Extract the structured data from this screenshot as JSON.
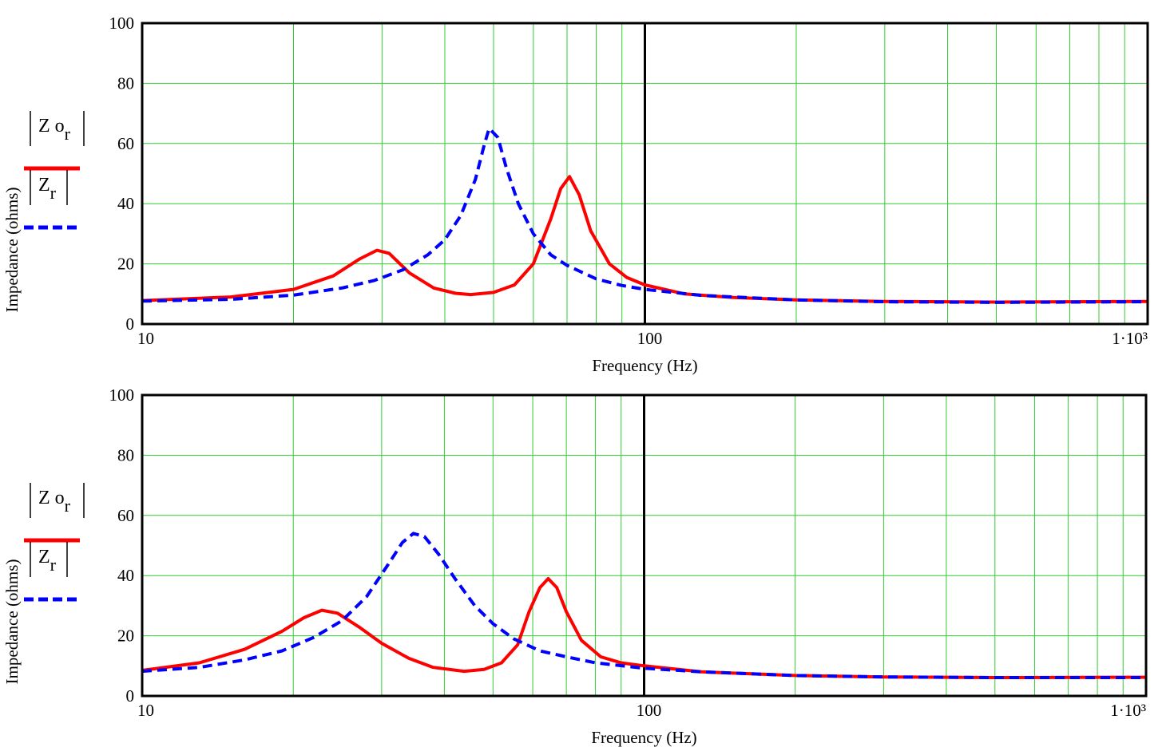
{
  "chart_data": [
    {
      "type": "line",
      "xscale": "log",
      "xlim": [
        10,
        1000
      ],
      "ylim": [
        0,
        100
      ],
      "xlabel": "Frequency (Hz)",
      "ylabel": "Impedance (ohms)",
      "xticks": [
        "10",
        "100",
        "1·10³"
      ],
      "yticks": [
        "0",
        "20",
        "40",
        "60",
        "80",
        "100"
      ],
      "grid": true,
      "legend_position": "left",
      "series": [
        {
          "name": "|Z o_r|",
          "legend_main": "Z o",
          "legend_sub": "r",
          "color": "#ff0000",
          "style": "solid",
          "x": [
            10,
            15,
            20,
            24,
            27,
            29.3,
            31,
            34,
            38,
            42,
            45,
            50,
            55,
            60,
            65,
            68,
            70.8,
            74,
            78,
            85,
            92,
            100,
            120,
            150,
            200,
            300,
            500,
            1000
          ],
          "y": [
            7.8,
            9,
            11.5,
            16,
            21.5,
            24.5,
            23.5,
            17,
            12,
            10.2,
            9.8,
            10.5,
            13,
            20,
            35,
            45,
            49,
            43,
            31,
            20,
            15.5,
            13,
            10,
            8.8,
            8,
            7.5,
            7.3,
            7.5
          ]
        },
        {
          "name": "|Z_r|",
          "legend_main": "Z",
          "legend_sub": "r",
          "color": "#0000ff",
          "style": "dashed",
          "x": [
            10,
            15,
            20,
            25,
            29,
            33,
            37,
            40,
            43,
            46,
            48,
            49,
            51,
            53,
            56,
            60,
            65,
            70,
            80,
            90,
            100,
            130,
            200,
            300,
            500,
            1000
          ],
          "y": [
            7.6,
            8.2,
            9.6,
            12,
            14.5,
            18,
            23,
            28,
            36,
            48,
            60,
            65,
            62,
            52,
            40,
            30,
            23,
            19.5,
            15,
            12.8,
            11.5,
            9.5,
            8,
            7.4,
            7.2,
            7.4
          ]
        }
      ]
    },
    {
      "type": "line",
      "xscale": "log",
      "xlim": [
        10,
        1000
      ],
      "ylim": [
        0,
        100
      ],
      "xlabel": "Frequency (Hz)",
      "ylabel": "Impedance (ohms)",
      "xticks": [
        "10",
        "100",
        "1·10³"
      ],
      "yticks": [
        "0",
        "20",
        "40",
        "60",
        "80",
        "100"
      ],
      "grid": true,
      "legend_position": "left",
      "series": [
        {
          "name": "|Z o_r|",
          "legend_main": "Z o",
          "legend_sub": "r",
          "color": "#ff0000",
          "style": "solid",
          "x": [
            10,
            13,
            16,
            19,
            21,
            22.8,
            24.5,
            27,
            30,
            34,
            38,
            43.8,
            48,
            52,
            56,
            59,
            62,
            64.4,
            67,
            70,
            75,
            82,
            90,
            100,
            130,
            200,
            300,
            500,
            1000
          ],
          "y": [
            8.5,
            11,
            15.5,
            21.5,
            26,
            28.5,
            27.5,
            23,
            17.5,
            12.5,
            9.5,
            8.2,
            8.8,
            11,
            17,
            28,
            36,
            39,
            36,
            28,
            18.5,
            13,
            11,
            10,
            8,
            6.8,
            6.3,
            6.1,
            6.2
          ]
        },
        {
          "name": "|Z_r|",
          "legend_main": "Z",
          "legend_sub": "r",
          "color": "#0000ff",
          "style": "dashed",
          "x": [
            10,
            13,
            16,
            19,
            22,
            25,
            28,
            31,
            33,
            34.7,
            36.5,
            39,
            42,
            46,
            50,
            55,
            62,
            70,
            80,
            100,
            130,
            200,
            300,
            500,
            1000
          ],
          "y": [
            8.2,
            9.5,
            12,
            15,
            19.5,
            25,
            33,
            44,
            51,
            54,
            53,
            47,
            39,
            30,
            24,
            19,
            15,
            13,
            11,
            9.2,
            8,
            6.8,
            6.3,
            6.1,
            6.1
          ]
        }
      ]
    }
  ]
}
